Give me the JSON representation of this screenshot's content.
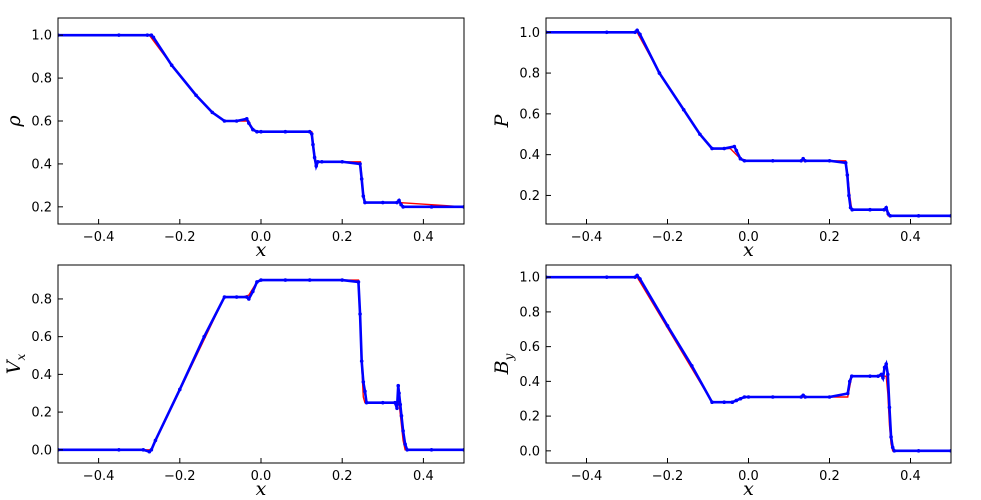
{
  "chart_data": [
    {
      "type": "scatter",
      "ylabel": "ρ",
      "ylabel_sub": "",
      "xlabel": "x",
      "xlim": [
        -0.5,
        0.5
      ],
      "ylim": [
        0.12,
        1.08
      ],
      "xticks": [
        -0.4,
        -0.2,
        0.0,
        0.2,
        0.4
      ],
      "xtick_labels": [
        "−0.4",
        "−0.2",
        "0.0",
        "0.2",
        "0.4"
      ],
      "yticks": [
        0.2,
        0.4,
        0.6,
        0.8,
        1.0
      ],
      "ytick_labels": [
        "0.2",
        "0.4",
        "0.6",
        "0.8",
        "1.0"
      ],
      "series": [
        {
          "color": "#ff0000",
          "style": "line",
          "x": [
            -0.5,
            -0.275,
            -0.22,
            -0.16,
            -0.12,
            -0.09,
            -0.045,
            -0.03,
            -0.02,
            0.0,
            0.125,
            0.13,
            0.135,
            0.14,
            0.245,
            0.25,
            0.255,
            0.34,
            0.5
          ],
          "y": [
            1.0,
            1.0,
            0.86,
            0.72,
            0.64,
            0.6,
            0.6,
            0.6,
            0.555,
            0.55,
            0.55,
            0.47,
            0.41,
            0.41,
            0.41,
            0.3,
            0.22,
            0.22,
            0.2
          ]
        },
        {
          "color": "#0000ff",
          "style": "markers",
          "x": [
            -0.5,
            -0.35,
            -0.28,
            -0.27,
            -0.265,
            -0.22,
            -0.16,
            -0.12,
            -0.09,
            -0.06,
            -0.035,
            -0.03,
            -0.02,
            -0.01,
            0.0,
            0.06,
            0.12,
            0.125,
            0.128,
            0.132,
            0.136,
            0.14,
            0.15,
            0.2,
            0.244,
            0.248,
            0.252,
            0.256,
            0.3,
            0.335,
            0.34,
            0.345,
            0.35,
            0.42,
            0.5
          ],
          "y": [
            1.0,
            1.0,
            1.0,
            1.0,
            0.99,
            0.86,
            0.72,
            0.64,
            0.6,
            0.6,
            0.61,
            0.59,
            0.56,
            0.55,
            0.55,
            0.55,
            0.55,
            0.54,
            0.49,
            0.43,
            0.39,
            0.41,
            0.41,
            0.41,
            0.4,
            0.33,
            0.25,
            0.22,
            0.22,
            0.22,
            0.23,
            0.21,
            0.2,
            0.2,
            0.2
          ]
        }
      ]
    },
    {
      "type": "scatter",
      "ylabel": "P",
      "ylabel_sub": "",
      "xlabel": "x",
      "xlim": [
        -0.5,
        0.5
      ],
      "ylim": [
        0.06,
        1.07
      ],
      "xticks": [
        -0.4,
        -0.2,
        0.0,
        0.2,
        0.4
      ],
      "xtick_labels": [
        "−0.4",
        "−0.2",
        "0.0",
        "0.2",
        "0.4"
      ],
      "yticks": [
        0.2,
        0.4,
        0.6,
        0.8,
        1.0
      ],
      "ytick_labels": [
        "0.2",
        "0.4",
        "0.6",
        "0.8",
        "1.0"
      ],
      "series": [
        {
          "color": "#ff0000",
          "style": "line",
          "x": [
            -0.5,
            -0.275,
            -0.22,
            -0.16,
            -0.12,
            -0.09,
            -0.045,
            -0.02,
            0.0,
            0.24,
            0.245,
            0.25,
            0.255,
            0.34,
            0.345,
            0.5
          ],
          "y": [
            1.0,
            1.0,
            0.8,
            0.62,
            0.5,
            0.43,
            0.43,
            0.38,
            0.37,
            0.37,
            0.3,
            0.2,
            0.13,
            0.13,
            0.1,
            0.1
          ]
        },
        {
          "color": "#0000ff",
          "style": "markers",
          "x": [
            -0.5,
            -0.35,
            -0.28,
            -0.275,
            -0.268,
            -0.22,
            -0.16,
            -0.12,
            -0.09,
            -0.06,
            -0.035,
            -0.03,
            -0.02,
            -0.01,
            0.06,
            0.13,
            0.135,
            0.14,
            0.2,
            0.24,
            0.244,
            0.248,
            0.252,
            0.256,
            0.3,
            0.335,
            0.34,
            0.345,
            0.35,
            0.42,
            0.5
          ],
          "y": [
            1.0,
            1.0,
            1.0,
            1.01,
            0.99,
            0.8,
            0.62,
            0.5,
            0.43,
            0.43,
            0.44,
            0.42,
            0.38,
            0.37,
            0.37,
            0.37,
            0.38,
            0.37,
            0.37,
            0.36,
            0.3,
            0.2,
            0.14,
            0.13,
            0.13,
            0.13,
            0.14,
            0.11,
            0.1,
            0.1,
            0.1
          ]
        }
      ]
    },
    {
      "type": "scatter",
      "ylabel": "V",
      "ylabel_sub": "x",
      "xlabel": "x",
      "xlim": [
        -0.5,
        0.5
      ],
      "ylim": [
        -0.07,
        0.98
      ],
      "xticks": [
        -0.4,
        -0.2,
        0.0,
        0.2,
        0.4
      ],
      "xtick_labels": [
        "−0.4",
        "−0.2",
        "0.0",
        "0.2",
        "0.4"
      ],
      "yticks": [
        0.0,
        0.2,
        0.4,
        0.6,
        0.8
      ],
      "ytick_labels": [
        "0.0",
        "0.2",
        "0.4",
        "0.6",
        "0.8"
      ],
      "series": [
        {
          "color": "#ff0000",
          "style": "line",
          "x": [
            -0.5,
            -0.275,
            -0.27,
            -0.09,
            -0.045,
            -0.03,
            -0.01,
            0.0,
            0.24,
            0.244,
            0.248,
            0.252,
            0.256,
            0.34,
            0.345,
            0.35,
            0.355,
            0.5
          ],
          "y": [
            0.0,
            0.0,
            0.0,
            0.81,
            0.81,
            0.82,
            0.89,
            0.9,
            0.9,
            0.7,
            0.45,
            0.28,
            0.25,
            0.25,
            0.15,
            0.05,
            0.0,
            0.0
          ]
        },
        {
          "color": "#0000ff",
          "style": "markers",
          "x": [
            -0.5,
            -0.35,
            -0.29,
            -0.275,
            -0.27,
            -0.26,
            -0.2,
            -0.14,
            -0.09,
            -0.06,
            -0.035,
            -0.03,
            -0.02,
            -0.01,
            0.0,
            0.06,
            0.12,
            0.2,
            0.24,
            0.244,
            0.248,
            0.252,
            0.256,
            0.26,
            0.3,
            0.33,
            0.335,
            0.338,
            0.34,
            0.343,
            0.346,
            0.35,
            0.355,
            0.36,
            0.42,
            0.5
          ],
          "y": [
            0.0,
            0.0,
            0.0,
            -0.01,
            0.0,
            0.05,
            0.32,
            0.6,
            0.81,
            0.81,
            0.81,
            0.8,
            0.84,
            0.89,
            0.9,
            0.9,
            0.9,
            0.9,
            0.89,
            0.72,
            0.47,
            0.36,
            0.31,
            0.25,
            0.25,
            0.25,
            0.22,
            0.34,
            0.3,
            0.24,
            0.18,
            0.1,
            0.03,
            0.0,
            0.0,
            0.0
          ]
        }
      ]
    },
    {
      "type": "scatter",
      "ylabel": "B",
      "ylabel_sub": "y",
      "xlabel": "x",
      "xlim": [
        -0.5,
        0.5
      ],
      "ylim": [
        -0.07,
        1.07
      ],
      "xticks": [
        -0.4,
        -0.2,
        0.0,
        0.2,
        0.4
      ],
      "xtick_labels": [
        "−0.4",
        "−0.2",
        "0.0",
        "0.2",
        "0.4"
      ],
      "yticks": [
        0.0,
        0.2,
        0.4,
        0.6,
        0.8,
        1.0
      ],
      "ytick_labels": [
        "0.0",
        "0.2",
        "0.4",
        "0.6",
        "0.8",
        "1.0"
      ],
      "series": [
        {
          "color": "#ff0000",
          "style": "line",
          "x": [
            -0.5,
            -0.275,
            -0.09,
            -0.045,
            -0.03,
            -0.01,
            0.0,
            0.245,
            0.25,
            0.255,
            0.34,
            0.344,
            0.348,
            0.352,
            0.356,
            0.5
          ],
          "y": [
            1.0,
            1.0,
            0.28,
            0.28,
            0.29,
            0.31,
            0.31,
            0.31,
            0.37,
            0.43,
            0.43,
            0.33,
            0.15,
            0.04,
            0.0,
            0.0
          ]
        },
        {
          "color": "#0000ff",
          "style": "markers",
          "x": [
            -0.5,
            -0.35,
            -0.28,
            -0.275,
            -0.268,
            -0.2,
            -0.14,
            -0.09,
            -0.06,
            -0.04,
            -0.03,
            -0.02,
            -0.01,
            0.0,
            0.06,
            0.13,
            0.135,
            0.14,
            0.2,
            0.245,
            0.25,
            0.255,
            0.3,
            0.32,
            0.328,
            0.332,
            0.336,
            0.34,
            0.344,
            0.348,
            0.352,
            0.356,
            0.36,
            0.42,
            0.5
          ],
          "y": [
            1.0,
            1.0,
            1.0,
            1.01,
            0.99,
            0.72,
            0.49,
            0.28,
            0.28,
            0.28,
            0.29,
            0.3,
            0.31,
            0.31,
            0.31,
            0.31,
            0.32,
            0.31,
            0.31,
            0.33,
            0.4,
            0.43,
            0.43,
            0.43,
            0.44,
            0.42,
            0.48,
            0.5,
            0.44,
            0.25,
            0.08,
            0.02,
            0.0,
            0.0,
            0.0
          ]
        }
      ]
    }
  ]
}
